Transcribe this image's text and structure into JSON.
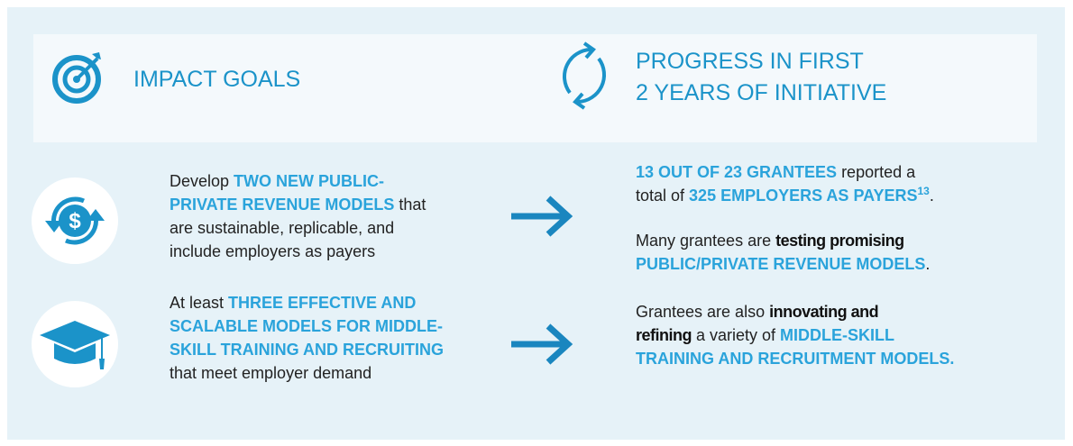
{
  "header": {
    "left_title": "IMPACT GOALS",
    "right_title": [
      "PROGRESS IN FIRST",
      "2 YEARS OF INITIATIVE"
    ]
  },
  "rows": [
    {
      "goal": [
        [
          {
            "s": "plain",
            "t": "Develop "
          },
          {
            "s": "accent",
            "t": "TWO NEW PUBLIC-"
          }
        ],
        [
          {
            "s": "accent",
            "t": "PRIVATE REVENUE MODELS"
          },
          {
            "s": "plain",
            "t": " that"
          }
        ],
        [
          {
            "s": "plain",
            "t": "are sustainable, replicable, and"
          }
        ],
        [
          {
            "s": "plain",
            "t": "include employers as payers"
          }
        ]
      ],
      "progress": [
        [
          [
            {
              "s": "accent",
              "t": "13 OUT OF 23 GRANTEES"
            },
            {
              "s": "plain",
              "t": " reported a"
            }
          ],
          [
            {
              "s": "plain",
              "t": "total of "
            },
            {
              "s": "accent",
              "t": "325 EMPLOYERS AS PAYERS"
            },
            {
              "s": "sup",
              "t": "13"
            },
            {
              "s": "plain",
              "t": "."
            }
          ]
        ],
        [
          [
            {
              "s": "plain",
              "t": "Many grantees are "
            },
            {
              "s": "bold",
              "t": "testing promising"
            }
          ],
          [
            {
              "s": "accent",
              "t": "PUBLIC/PRIVATE REVENUE MODELS"
            },
            {
              "s": "plain",
              "t": "."
            }
          ]
        ]
      ]
    },
    {
      "goal": [
        [
          {
            "s": "plain",
            "t": "At least "
          },
          {
            "s": "accent",
            "t": "THREE EFFECTIVE AND"
          }
        ],
        [
          {
            "s": "accent",
            "t": "SCALABLE MODELS FOR MIDDLE-"
          }
        ],
        [
          {
            "s": "accent",
            "t": "SKILL TRAINING AND RECRUITING"
          }
        ],
        [
          {
            "s": "plain",
            "t": "that meet employer demand"
          }
        ]
      ],
      "progress": [
        [
          [
            {
              "s": "plain",
              "t": "Grantees are also "
            },
            {
              "s": "bold",
              "t": "innovating and"
            }
          ],
          [
            {
              "s": "bold",
              "t": "refining"
            },
            {
              "s": "plain",
              "t": " a variety of "
            },
            {
              "s": "accent",
              "t": "MIDDLE-SKILL"
            }
          ],
          [
            {
              "s": "accent",
              "t": "TRAINING AND RECRUITMENT MODELS."
            }
          ]
        ]
      ]
    }
  ]
}
